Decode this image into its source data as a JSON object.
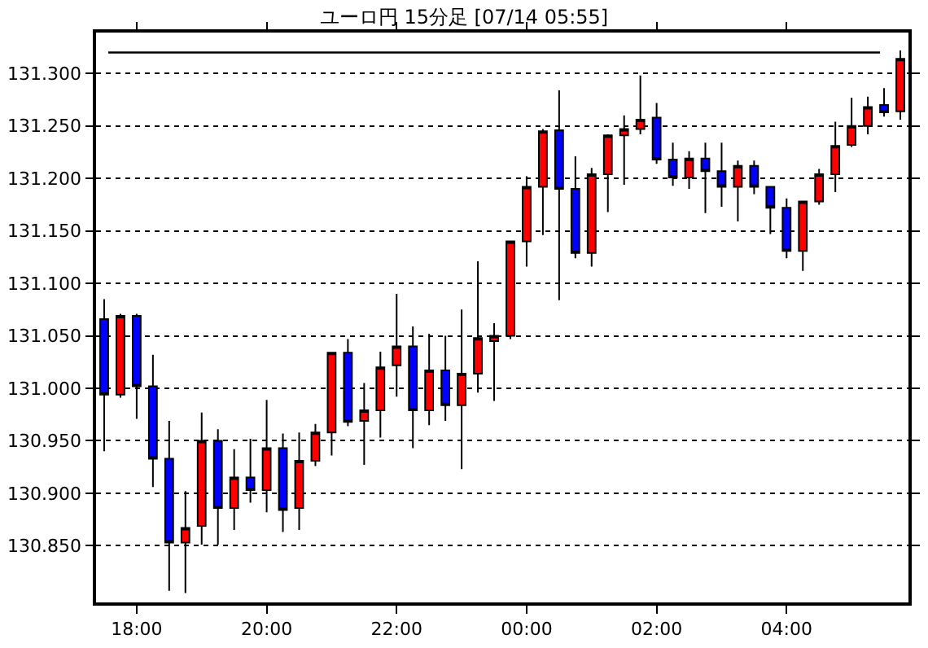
{
  "chart_data": {
    "type": "candlestick",
    "title": "ユーロ円 15分足 [07/14 05:55]",
    "categories": [
      null,
      null,
      "18:00",
      null,
      null,
      null,
      null,
      null,
      null,
      null,
      "20:00",
      null,
      null,
      null,
      null,
      null,
      null,
      null,
      "22:00",
      null,
      null,
      null,
      null,
      null,
      null,
      null,
      "00:00",
      null,
      null,
      null,
      null,
      null,
      null,
      null,
      "02:00",
      null,
      null,
      null,
      null,
      null,
      null,
      null,
      "04:00",
      null,
      null,
      null,
      null,
      null,
      null,
      null
    ],
    "ohlc": [
      [
        131.066,
        131.085,
        130.94,
        130.994
      ],
      [
        130.994,
        131.071,
        130.991,
        131.069
      ],
      [
        131.069,
        131.071,
        130.971,
        131.002
      ],
      [
        131.002,
        131.032,
        130.906,
        130.933
      ],
      [
        130.933,
        130.969,
        130.807,
        130.853
      ],
      [
        130.853,
        130.902,
        130.805,
        130.867
      ],
      [
        130.869,
        130.977,
        130.851,
        130.95
      ],
      [
        130.95,
        130.961,
        130.851,
        130.886
      ],
      [
        130.886,
        130.942,
        130.865,
        130.915
      ],
      [
        130.915,
        130.952,
        130.891,
        130.903
      ],
      [
        130.903,
        130.989,
        130.882,
        130.943
      ],
      [
        130.943,
        130.957,
        130.863,
        130.884
      ],
      [
        130.886,
        130.958,
        130.865,
        130.931
      ],
      [
        130.931,
        130.966,
        130.926,
        130.958
      ],
      [
        130.958,
        131.034,
        130.936,
        131.034
      ],
      [
        131.034,
        131.047,
        130.964,
        130.968
      ],
      [
        130.969,
        131.005,
        130.927,
        130.979
      ],
      [
        130.979,
        131.035,
        130.953,
        131.02
      ],
      [
        131.022,
        131.09,
        130.992,
        131.04
      ],
      [
        131.04,
        131.059,
        130.943,
        130.979
      ],
      [
        130.979,
        131.052,
        130.965,
        131.017
      ],
      [
        131.017,
        131.05,
        130.969,
        130.984
      ],
      [
        130.984,
        131.075,
        130.923,
        131.014
      ],
      [
        131.014,
        131.121,
        130.996,
        131.048
      ],
      [
        131.045,
        131.062,
        130.988,
        131.05
      ],
      [
        131.05,
        131.14,
        131.047,
        131.14
      ],
      [
        131.14,
        131.202,
        131.116,
        131.192
      ],
      [
        131.192,
        131.247,
        131.146,
        131.245
      ],
      [
        131.246,
        131.284,
        131.084,
        131.19
      ],
      [
        131.19,
        131.221,
        131.124,
        131.129
      ],
      [
        131.129,
        131.21,
        131.116,
        131.204
      ],
      [
        131.204,
        131.242,
        131.168,
        131.241
      ],
      [
        131.241,
        131.26,
        131.194,
        131.247
      ],
      [
        131.247,
        131.298,
        131.242,
        131.256
      ],
      [
        131.258,
        131.272,
        131.214,
        131.218
      ],
      [
        131.218,
        131.234,
        131.193,
        131.201
      ],
      [
        131.201,
        131.226,
        131.19,
        131.219
      ],
      [
        131.219,
        131.234,
        131.167,
        131.207
      ],
      [
        131.207,
        131.234,
        131.173,
        131.192
      ],
      [
        131.192,
        131.217,
        131.159,
        131.212
      ],
      [
        131.212,
        131.217,
        131.185,
        131.192
      ],
      [
        131.192,
        131.192,
        131.147,
        131.172
      ],
      [
        131.172,
        131.181,
        131.124,
        131.131
      ],
      [
        131.131,
        131.178,
        131.112,
        131.178
      ],
      [
        131.178,
        131.209,
        131.175,
        131.204
      ],
      [
        131.204,
        131.254,
        131.187,
        131.231
      ],
      [
        131.232,
        131.277,
        131.23,
        131.25
      ],
      [
        131.25,
        131.278,
        131.242,
        131.268
      ],
      [
        131.27,
        131.286,
        131.259,
        131.263
      ],
      [
        131.264,
        131.322,
        131.256,
        131.314
      ]
    ],
    "colors": [
      "#0000ff",
      "#ff0000",
      "#0000ff",
      "#0000ff",
      "#0000ff",
      "#ff0000",
      "#ff0000",
      "#0000ff",
      "#ff0000",
      "#0000ff",
      "#ff0000",
      "#0000ff",
      "#ff0000",
      "#ff0000",
      "#ff0000",
      "#0000ff",
      "#ff0000",
      "#ff0000",
      "#ff0000",
      "#0000ff",
      "#ff0000",
      "#0000ff",
      "#ff0000",
      "#ff0000",
      "#ff0000",
      "#ff0000",
      "#ff0000",
      "#ff0000",
      "#0000ff",
      "#0000ff",
      "#ff0000",
      "#ff0000",
      "#ff0000",
      "#ff0000",
      "#0000ff",
      "#0000ff",
      "#ff0000",
      "#0000ff",
      "#0000ff",
      "#ff0000",
      "#0000ff",
      "#0000ff",
      "#0000ff",
      "#ff0000",
      "#ff0000",
      "#ff0000",
      "#ff0000",
      "#ff0000",
      "#0000ff",
      "#ff0000"
    ],
    "ylim": [
      130.796,
      131.339
    ],
    "yticks": [
      {
        "value": 130.85,
        "label": "130.850"
      },
      {
        "value": 130.9,
        "label": "130.900"
      },
      {
        "value": 130.95,
        "label": "130.950"
      },
      {
        "value": 131.0,
        "label": "131.000"
      },
      {
        "value": 131.05,
        "label": "131.050"
      },
      {
        "value": 131.1,
        "label": "131.100"
      },
      {
        "value": 131.15,
        "label": "131.150"
      },
      {
        "value": 131.2,
        "label": "131.200"
      },
      {
        "value": 131.25,
        "label": "131.250"
      },
      {
        "value": 131.3,
        "label": "131.300"
      }
    ],
    "grid": "y",
    "ref_lines": [
      {
        "axis": "y",
        "value": 131.32,
        "color": "#000000"
      }
    ]
  }
}
